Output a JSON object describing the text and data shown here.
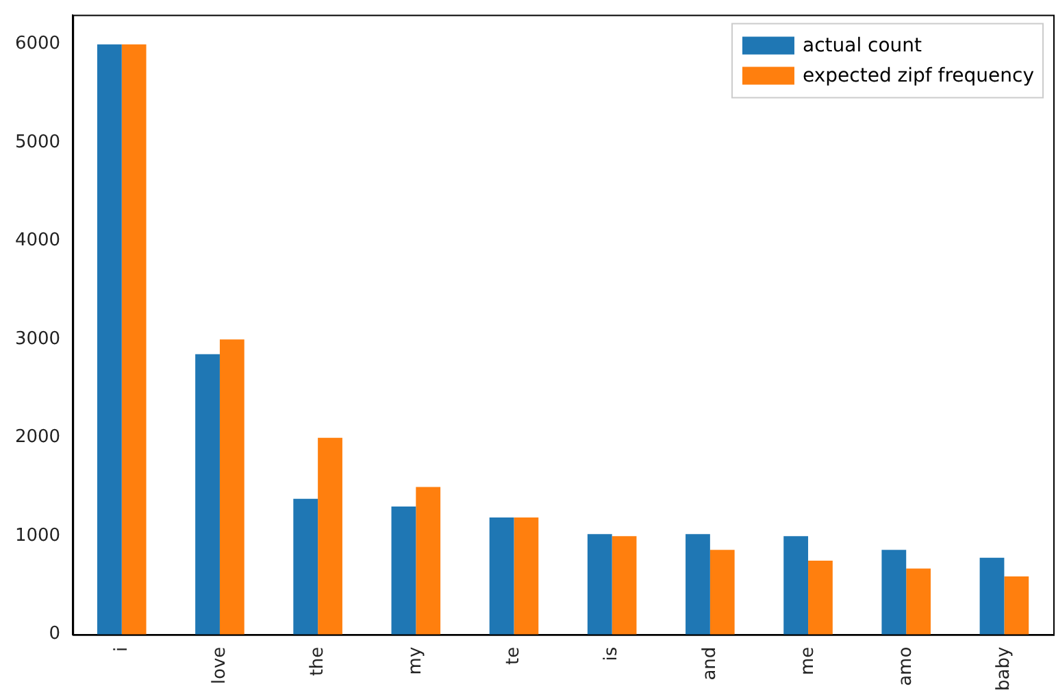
{
  "chart_data": {
    "type": "bar",
    "categories": [
      "i",
      "love",
      "the",
      "my",
      "te",
      "is",
      "and",
      "me",
      "amo",
      "baby"
    ],
    "series": [
      {
        "name": "actual count",
        "color": "#1f77b4",
        "values": [
          6000,
          2850,
          1380,
          1300,
          1190,
          1020,
          1020,
          1000,
          860,
          780
        ]
      },
      {
        "name": "expected zipf frequency",
        "color": "#ff7f0e",
        "values": [
          6000,
          3000,
          2000,
          1500,
          1190,
          1000,
          860,
          750,
          670,
          590
        ]
      }
    ],
    "ylim": [
      0,
      6300
    ],
    "yticks": [
      0,
      1000,
      2000,
      3000,
      4000,
      5000,
      6000
    ],
    "grid": false,
    "legend": "top right"
  }
}
